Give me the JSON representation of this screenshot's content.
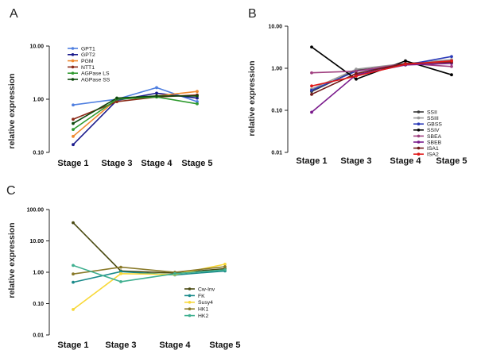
{
  "chart_data": [
    {
      "panel_label": "A",
      "type": "line",
      "ylabel": "relative expression",
      "yscale": "log",
      "ylim": [
        0.1,
        10
      ],
      "yticks": [
        "0.10",
        "1.00",
        "10.00"
      ],
      "categories": [
        "Stage 1",
        "Stage 3",
        "Stage 4",
        "Stage 5"
      ],
      "legend_position": "top-left",
      "series": [
        {
          "name": "GPT1",
          "color": "#4f7fe0",
          "values": [
            0.78,
            1.0,
            1.65,
            0.9
          ]
        },
        {
          "name": "GPT2",
          "color": "#1a1a8c",
          "values": [
            0.14,
            0.95,
            1.3,
            1.05
          ]
        },
        {
          "name": "PGM",
          "color": "#f08a30",
          "values": [
            0.2,
            1.0,
            1.15,
            1.4
          ]
        },
        {
          "name": "NTT1",
          "color": "#8b2a18",
          "values": [
            0.42,
            0.9,
            1.1,
            1.2
          ]
        },
        {
          "name": "AGPase LS",
          "color": "#2e9a2e",
          "values": [
            0.27,
            1.0,
            1.1,
            0.82
          ]
        },
        {
          "name": "AGPase SS",
          "color": "#0e4a0e",
          "values": [
            0.35,
            1.05,
            1.15,
            1.15
          ]
        }
      ]
    },
    {
      "panel_label": "B",
      "type": "line",
      "ylabel": "relative expression",
      "yscale": "log",
      "ylim": [
        0.01,
        10
      ],
      "yticks": [
        "0.01",
        "0.10",
        "1.00",
        "10.00"
      ],
      "categories": [
        "Stage 1",
        "Stage 3",
        "Stage 4",
        "Stage 5"
      ],
      "legend_position": "bottom-right",
      "series": [
        {
          "name": "SSII",
          "color": "#3a3a3a",
          "values": [
            0.28,
            0.9,
            1.2,
            1.5
          ]
        },
        {
          "name": "SSIII",
          "color": "#9a9a9a",
          "values": [
            0.32,
            0.95,
            1.3,
            1.6
          ]
        },
        {
          "name": "GBSS",
          "color": "#2a3ab8",
          "values": [
            0.3,
            0.85,
            1.2,
            1.9
          ]
        },
        {
          "name": "SSIV",
          "color": "#000000",
          "values": [
            3.2,
            0.55,
            1.5,
            0.7
          ]
        },
        {
          "name": "SBEA",
          "color": "#a04080",
          "values": [
            0.78,
            0.85,
            1.3,
            1.1
          ]
        },
        {
          "name": "SBEB",
          "color": "#7a1a8c",
          "values": [
            0.09,
            0.7,
            1.2,
            1.3
          ]
        },
        {
          "name": "ISA1",
          "color": "#701818",
          "values": [
            0.24,
            0.75,
            1.3,
            1.4
          ]
        },
        {
          "name": "ISA2",
          "color": "#e01818",
          "values": [
            0.38,
            0.65,
            1.25,
            1.5
          ]
        }
      ]
    },
    {
      "panel_label": "C",
      "type": "line",
      "ylabel": "relative expression",
      "yscale": "log",
      "ylim": [
        0.01,
        100
      ],
      "yticks": [
        "0.01",
        "0.10",
        "1.00",
        "10.00",
        "100.00"
      ],
      "categories": [
        "Stage 1",
        "Stage 3",
        "Stage 4",
        "Stage 5"
      ],
      "legend_position": "bottom-right",
      "series": [
        {
          "name": "Cw-Inv",
          "color": "#4a4a12",
          "values": [
            38,
            1.1,
            0.95,
            1.3
          ]
        },
        {
          "name": "FK",
          "color": "#1a8a8a",
          "values": [
            0.48,
            1.05,
            0.82,
            1.1
          ]
        },
        {
          "name": "Susy4",
          "color": "#f8d838",
          "values": [
            0.065,
            0.9,
            0.85,
            1.8
          ]
        },
        {
          "name": "HK1",
          "color": "#8a7a2a",
          "values": [
            0.88,
            1.45,
            1.0,
            1.5
          ]
        },
        {
          "name": "HK2",
          "color": "#40b090",
          "values": [
            1.65,
            0.5,
            0.9,
            1.2
          ]
        }
      ]
    }
  ]
}
